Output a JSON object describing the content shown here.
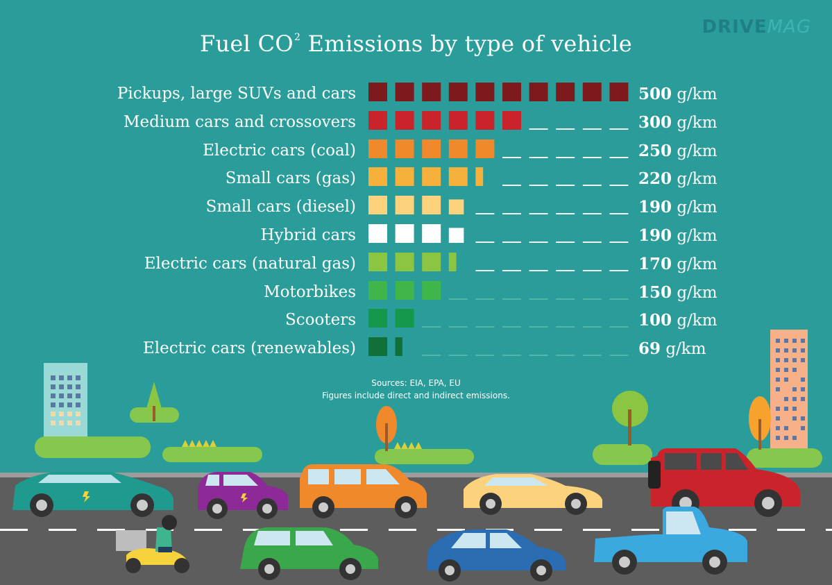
{
  "title": {
    "main": "Fuel CO",
    "superscript": "2",
    "rest": "Emissions by type of vehicle"
  },
  "brand": {
    "part1": "DRIVE",
    "part2": "MAG"
  },
  "chart_data": {
    "type": "bar",
    "unit": "g/km",
    "xlim": [
      0,
      500
    ],
    "square_value": 50,
    "categories": [
      "Pickups, large SUVs and cars",
      "Medium cars and crossovers",
      "Electric cars (coal)",
      "Small cars (gas)",
      "Small cars (diesel)",
      "Hybrid cars",
      "Electric cars (natural gas)",
      "Motorbikes",
      "Scooters",
      "Electric cars (renewables)"
    ],
    "values": [
      500,
      300,
      250,
      220,
      190,
      190,
      170,
      150,
      100,
      69
    ],
    "value_labels": [
      "500",
      "300",
      "250",
      "220",
      "190",
      "190",
      "170",
      "150",
      "100",
      "69"
    ],
    "colors": [
      "#7d1a1d",
      "#c9242b",
      "#f0892b",
      "#f6b13c",
      "#fcd27c",
      "#ffffff",
      "#8bc541",
      "#3fb54a",
      "#16984a",
      "#0f7138"
    ]
  },
  "sources": {
    "line1": "Sources: EIA, EPA, EU",
    "line2": "Figures include direct and indirect emissions."
  }
}
